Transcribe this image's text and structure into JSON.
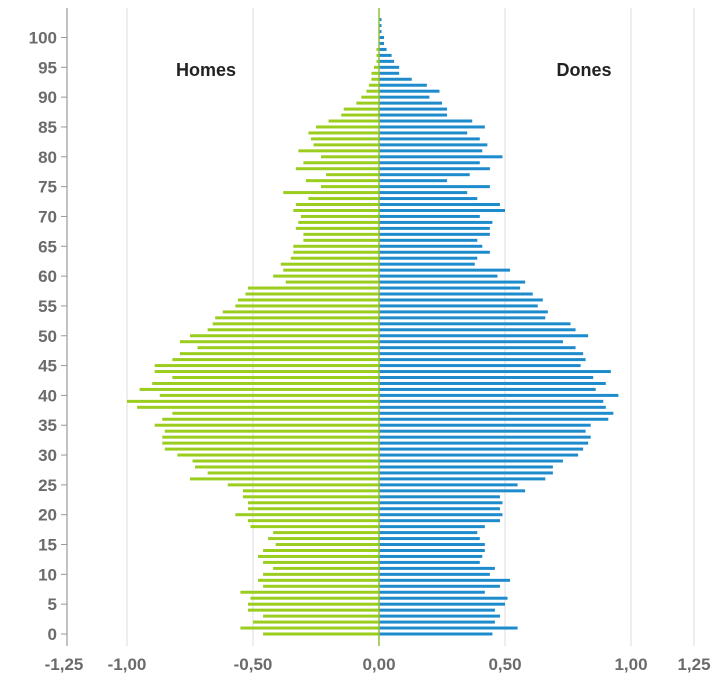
{
  "chart_data": {
    "type": "bar",
    "orientation": "horizontal",
    "subtype": "population-pyramid",
    "ages": [
      0,
      1,
      2,
      3,
      4,
      5,
      6,
      7,
      8,
      9,
      10,
      11,
      12,
      13,
      14,
      15,
      16,
      17,
      18,
      19,
      20,
      21,
      22,
      23,
      24,
      25,
      26,
      27,
      28,
      29,
      30,
      31,
      32,
      33,
      34,
      35,
      36,
      37,
      38,
      39,
      40,
      41,
      42,
      43,
      44,
      45,
      46,
      47,
      48,
      49,
      50,
      51,
      52,
      53,
      54,
      55,
      56,
      57,
      58,
      59,
      60,
      61,
      62,
      63,
      64,
      65,
      66,
      67,
      68,
      69,
      70,
      71,
      72,
      73,
      74,
      75,
      76,
      77,
      78,
      79,
      80,
      81,
      82,
      83,
      84,
      85,
      86,
      87,
      88,
      89,
      90,
      91,
      92,
      93,
      94,
      95,
      96,
      97,
      98,
      99,
      100,
      101,
      102,
      103,
      104
    ],
    "series": [
      {
        "name": "Homes",
        "color": "#9acd1e",
        "values": [
          -0.46,
          -0.55,
          -0.5,
          -0.46,
          -0.52,
          -0.52,
          -0.51,
          -0.55,
          -0.46,
          -0.48,
          -0.46,
          -0.42,
          -0.46,
          -0.48,
          -0.46,
          -0.41,
          -0.44,
          -0.42,
          -0.51,
          -0.52,
          -0.57,
          -0.52,
          -0.52,
          -0.54,
          -0.54,
          -0.6,
          -0.75,
          -0.68,
          -0.73,
          -0.74,
          -0.8,
          -0.85,
          -0.86,
          -0.86,
          -0.85,
          -0.89,
          -0.86,
          -0.82,
          -0.96,
          -1.0,
          -0.87,
          -0.95,
          -0.9,
          -0.82,
          -0.89,
          -0.89,
          -0.82,
          -0.79,
          -0.72,
          -0.79,
          -0.75,
          -0.68,
          -0.66,
          -0.65,
          -0.62,
          -0.57,
          -0.56,
          -0.53,
          -0.52,
          -0.37,
          -0.42,
          -0.38,
          -0.39,
          -0.35,
          -0.34,
          -0.34,
          -0.3,
          -0.3,
          -0.33,
          -0.32,
          -0.31,
          -0.34,
          -0.33,
          -0.28,
          -0.38,
          -0.23,
          -0.29,
          -0.21,
          -0.33,
          -0.3,
          -0.23,
          -0.32,
          -0.26,
          -0.27,
          -0.28,
          -0.25,
          -0.2,
          -0.15,
          -0.14,
          -0.09,
          -0.07,
          -0.05,
          -0.04,
          -0.03,
          -0.03,
          -0.02,
          -0.01,
          -0.01,
          -0.01,
          0,
          0,
          0,
          0,
          0,
          0
        ]
      },
      {
        "name": "Dones",
        "color": "#1e8ccc",
        "values": [
          0.45,
          0.55,
          0.46,
          0.48,
          0.46,
          0.5,
          0.51,
          0.42,
          0.48,
          0.52,
          0.44,
          0.46,
          0.4,
          0.41,
          0.42,
          0.42,
          0.4,
          0.39,
          0.42,
          0.48,
          0.49,
          0.48,
          0.49,
          0.48,
          0.58,
          0.55,
          0.66,
          0.69,
          0.69,
          0.73,
          0.79,
          0.81,
          0.83,
          0.84,
          0.82,
          0.84,
          0.91,
          0.93,
          0.9,
          0.89,
          0.95,
          0.86,
          0.9,
          0.85,
          0.92,
          0.8,
          0.82,
          0.81,
          0.78,
          0.73,
          0.83,
          0.78,
          0.76,
          0.66,
          0.67,
          0.63,
          0.65,
          0.61,
          0.56,
          0.58,
          0.47,
          0.52,
          0.38,
          0.39,
          0.44,
          0.41,
          0.39,
          0.44,
          0.44,
          0.45,
          0.4,
          0.5,
          0.48,
          0.39,
          0.35,
          0.44,
          0.27,
          0.36,
          0.44,
          0.4,
          0.49,
          0.41,
          0.43,
          0.4,
          0.35,
          0.42,
          0.37,
          0.27,
          0.27,
          0.25,
          0.2,
          0.24,
          0.19,
          0.13,
          0.08,
          0.08,
          0.06,
          0.05,
          0.03,
          0.02,
          0.02,
          0.01,
          0.01,
          0.01,
          0
        ]
      }
    ],
    "xlim": [
      -1.25,
      1.25
    ],
    "ylim": [
      0,
      104
    ],
    "xticks": [
      -1.25,
      -1.0,
      -0.5,
      0.0,
      0.5,
      1.0,
      1.25
    ],
    "xtick_labels": [
      "-1,25",
      "-1,00",
      "-0,50",
      "0,00",
      "0,50",
      "1,00",
      "1,25"
    ],
    "yticks": [
      0,
      5,
      10,
      15,
      20,
      25,
      30,
      35,
      40,
      45,
      50,
      55,
      60,
      65,
      70,
      75,
      80,
      85,
      90,
      95,
      100
    ],
    "ytick_labels": [
      "0",
      "5",
      "10",
      "15",
      "20",
      "25",
      "30",
      "35",
      "40",
      "45",
      "50",
      "55",
      "60",
      "65",
      "70",
      "75",
      "80",
      "85",
      "90",
      "95",
      "100"
    ],
    "vertical_gridlines": [
      -1.0,
      -0.5,
      0.5,
      1.0,
      1.25
    ],
    "grid_color": "#dddddd",
    "axis_color": "#8fbf3a",
    "legend": {
      "left_label": "Homes",
      "right_label": "Dones",
      "placement": "top"
    },
    "title": "",
    "xlabel": "",
    "ylabel": ""
  }
}
